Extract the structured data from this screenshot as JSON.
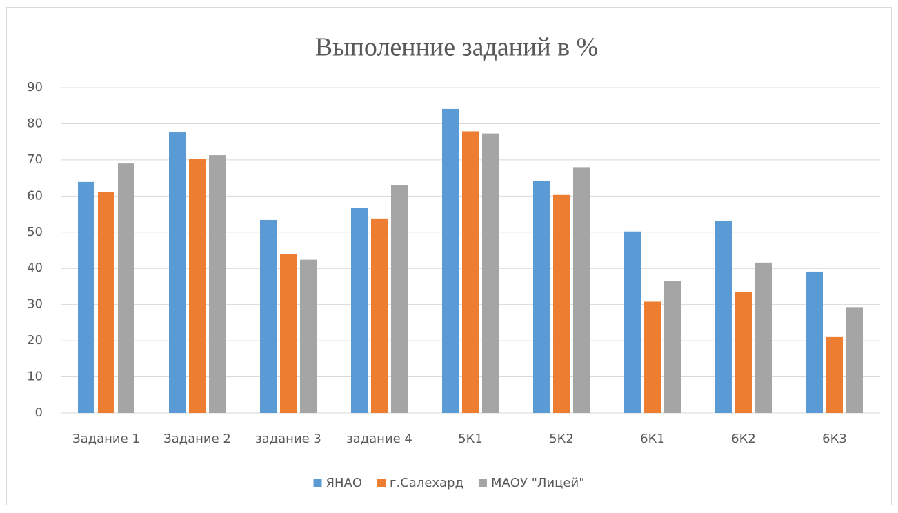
{
  "chart_data": {
    "type": "bar",
    "title": "Выполенние заданий в %",
    "categories": [
      "Задание 1",
      "Задание 2",
      "задание 3",
      "задание 4",
      "5К1",
      "5К2",
      "6К1",
      "6К2",
      "6К3"
    ],
    "series": [
      {
        "name": "ЯНАО",
        "color": "#5b9bd5",
        "values": [
          63.9,
          77.6,
          53.4,
          56.8,
          84.1,
          64.1,
          50.2,
          53.2,
          39.1
        ]
      },
      {
        "name": "г.Салехард",
        "color": "#ed7d31",
        "values": [
          61.2,
          70.2,
          43.9,
          53.8,
          77.9,
          60.3,
          30.8,
          33.5,
          21
        ]
      },
      {
        "name": "МАОУ \"Лицей\"",
        "color": "#a5a5a5",
        "values": [
          69,
          71.3,
          42.4,
          63,
          77.3,
          68,
          36.5,
          41.6,
          29.3
        ]
      }
    ],
    "ylim": [
      0,
      90
    ],
    "yticks": [
      0,
      10,
      20,
      30,
      40,
      50,
      60,
      70,
      80,
      90
    ],
    "grid": true,
    "legend": "bottom"
  }
}
